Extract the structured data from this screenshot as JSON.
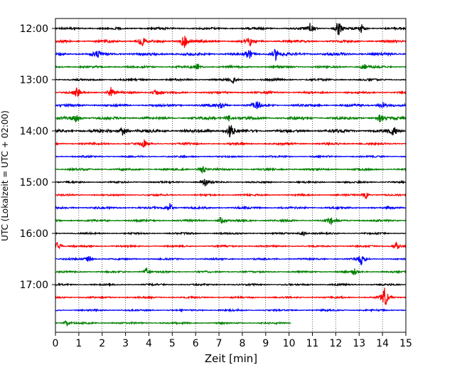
{
  "chart_data": {
    "type": "line",
    "title": "",
    "xlabel": "Zeit  [min]",
    "ylabel": "UTC (Lokalzeit = UTC + 02:00)",
    "xlim": [
      0,
      15
    ],
    "x_ticks": [
      "0",
      "1",
      "2",
      "3",
      "4",
      "5",
      "6",
      "7",
      "8",
      "9",
      "10",
      "11",
      "12",
      "13",
      "14",
      "15"
    ],
    "y_ticks": [
      "12:00",
      "13:00",
      "14:00",
      "15:00",
      "16:00",
      "17:00"
    ],
    "grid": "vertical dotted at each minute",
    "colors": [
      "#000000",
      "#ff0000",
      "#0000ff",
      "#008000"
    ],
    "trace_interval_min": 15,
    "traces": [
      {
        "start": "12:00",
        "end_min": 15,
        "color": "#000000",
        "amplitude": 0.6,
        "events": [
          {
            "x": 10.9,
            "amp": 2.0
          },
          {
            "x": 12.1,
            "amp": 3.5
          },
          {
            "x": 13.1,
            "amp": 1.6
          }
        ]
      },
      {
        "start": "12:15",
        "end_min": 15,
        "color": "#ff0000",
        "amplitude": 0.7,
        "events": [
          {
            "x": 3.7,
            "amp": 2.2
          },
          {
            "x": 5.5,
            "amp": 3.0
          },
          {
            "x": 8.3,
            "amp": 1.8
          }
        ]
      },
      {
        "start": "12:30",
        "end_min": 15,
        "color": "#0000ff",
        "amplitude": 0.8,
        "events": [
          {
            "x": 1.8,
            "amp": 1.4
          },
          {
            "x": 8.3,
            "amp": 1.6
          },
          {
            "x": 9.4,
            "amp": 2.6
          }
        ]
      },
      {
        "start": "12:45",
        "end_min": 15,
        "color": "#008000",
        "amplitude": 0.6,
        "events": [
          {
            "x": 6.1,
            "amp": 1.2
          },
          {
            "x": 13.2,
            "amp": 1.2
          }
        ]
      },
      {
        "start": "13:00",
        "end_min": 15,
        "color": "#000000",
        "amplitude": 0.6,
        "events": [
          {
            "x": 7.6,
            "amp": 1.1
          }
        ]
      },
      {
        "start": "13:15",
        "end_min": 15,
        "color": "#ff0000",
        "amplitude": 0.6,
        "events": [
          {
            "x": 0.9,
            "amp": 2.0
          },
          {
            "x": 2.4,
            "amp": 2.4
          },
          {
            "x": 4.3,
            "amp": 1.2
          }
        ]
      },
      {
        "start": "13:30",
        "end_min": 15,
        "color": "#0000ff",
        "amplitude": 0.7,
        "events": [
          {
            "x": 7.1,
            "amp": 1.3
          },
          {
            "x": 8.6,
            "amp": 2.0
          },
          {
            "x": 14.0,
            "amp": 1.4
          }
        ]
      },
      {
        "start": "13:45",
        "end_min": 15,
        "color": "#008000",
        "amplitude": 0.8,
        "events": [
          {
            "x": 0.9,
            "amp": 1.8
          },
          {
            "x": 7.4,
            "amp": 1.5
          },
          {
            "x": 13.9,
            "amp": 1.5
          }
        ]
      },
      {
        "start": "14:00",
        "end_min": 15,
        "color": "#000000",
        "amplitude": 0.9,
        "events": [
          {
            "x": 2.9,
            "amp": 1.8
          },
          {
            "x": 7.5,
            "amp": 3.5
          },
          {
            "x": 14.5,
            "amp": 1.8
          }
        ]
      },
      {
        "start": "14:15",
        "end_min": 15,
        "color": "#ff0000",
        "amplitude": 0.6,
        "events": [
          {
            "x": 3.8,
            "amp": 1.2
          }
        ]
      },
      {
        "start": "14:30",
        "end_min": 15,
        "color": "#0000ff",
        "amplitude": 0.5,
        "events": []
      },
      {
        "start": "14:45",
        "end_min": 15,
        "color": "#008000",
        "amplitude": 0.6,
        "events": [
          {
            "x": 6.3,
            "amp": 1.6
          }
        ]
      },
      {
        "start": "15:00",
        "end_min": 15,
        "color": "#000000",
        "amplitude": 0.5,
        "events": [
          {
            "x": 6.4,
            "amp": 1.3
          }
        ]
      },
      {
        "start": "15:15",
        "end_min": 15,
        "color": "#ff0000",
        "amplitude": 0.5,
        "events": [
          {
            "x": 13.3,
            "amp": 1.5
          }
        ]
      },
      {
        "start": "15:30",
        "end_min": 15,
        "color": "#0000ff",
        "amplitude": 0.6,
        "events": [
          {
            "x": 4.9,
            "amp": 1.6
          }
        ]
      },
      {
        "start": "15:45",
        "end_min": 15,
        "color": "#008000",
        "amplitude": 0.6,
        "events": [
          {
            "x": 7.1,
            "amp": 1.4
          },
          {
            "x": 11.8,
            "amp": 2.0
          }
        ]
      },
      {
        "start": "16:00",
        "end_min": 15,
        "color": "#000000",
        "amplitude": 0.5,
        "events": [
          {
            "x": 10.6,
            "amp": 1.0
          }
        ]
      },
      {
        "start": "16:15",
        "end_min": 15,
        "color": "#ff0000",
        "amplitude": 0.5,
        "events": [
          {
            "x": 0.1,
            "amp": 1.8
          },
          {
            "x": 14.6,
            "amp": 1.6
          }
        ]
      },
      {
        "start": "16:30",
        "end_min": 15,
        "color": "#0000ff",
        "amplitude": 0.5,
        "events": [
          {
            "x": 1.4,
            "amp": 1.6
          },
          {
            "x": 13.1,
            "amp": 2.0
          }
        ]
      },
      {
        "start": "16:45",
        "end_min": 15,
        "color": "#008000",
        "amplitude": 0.5,
        "events": [
          {
            "x": 3.9,
            "amp": 1.5
          },
          {
            "x": 12.8,
            "amp": 1.2
          }
        ]
      },
      {
        "start": "17:00",
        "end_min": 15,
        "color": "#000000",
        "amplitude": 0.5,
        "events": []
      },
      {
        "start": "17:15",
        "end_min": 15,
        "color": "#ff0000",
        "amplitude": 0.5,
        "events": [
          {
            "x": 14.1,
            "amp": 4.0
          }
        ]
      },
      {
        "start": "17:30",
        "end_min": 15,
        "color": "#0000ff",
        "amplitude": 0.5,
        "events": []
      },
      {
        "start": "17:45",
        "end_min": 10.1,
        "color": "#008000",
        "amplitude": 0.5,
        "events": [
          {
            "x": 0.5,
            "amp": 1.2
          }
        ]
      }
    ]
  }
}
